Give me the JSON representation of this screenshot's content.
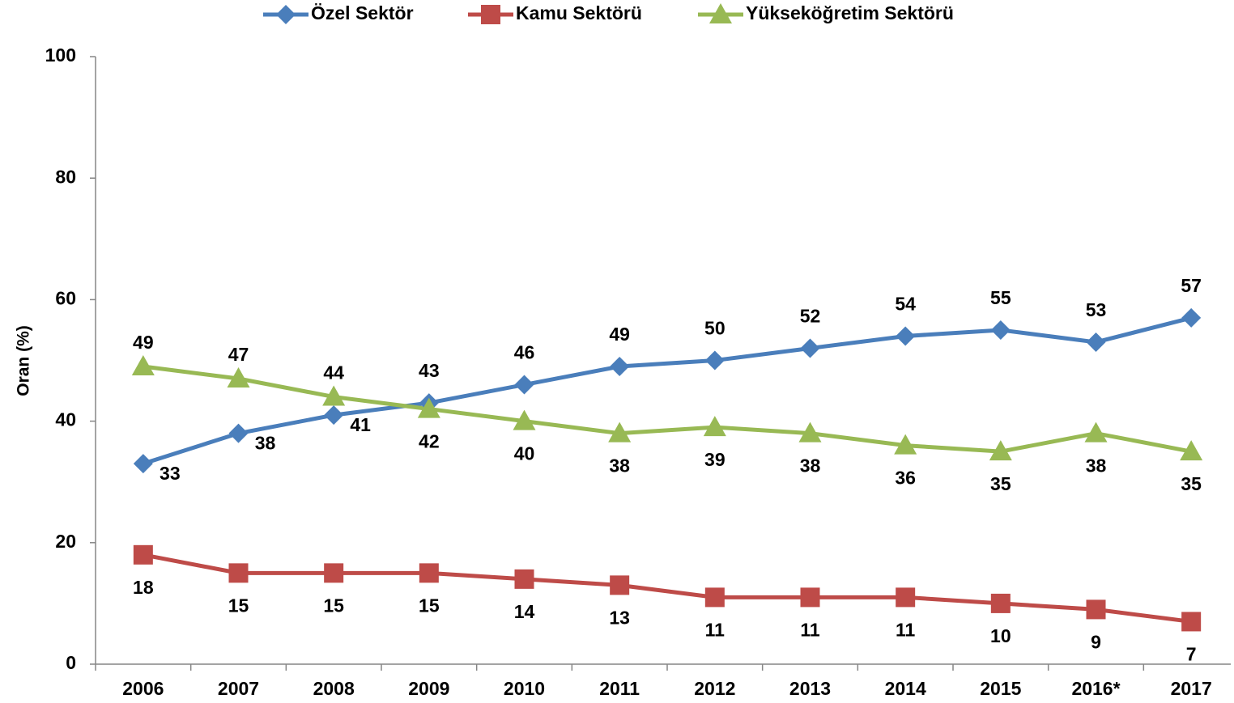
{
  "chart_data": {
    "type": "line",
    "y_label": "Oran (%)",
    "categories": [
      "2006",
      "2007",
      "2008",
      "2009",
      "2010",
      "2011",
      "2012",
      "2013",
      "2014",
      "2015",
      "2016*",
      "2017"
    ],
    "series": [
      {
        "name": "Özel Sektör",
        "color": "#4a7ebb",
        "marker": "diamond",
        "values": [
          33,
          38,
          41,
          43,
          46,
          49,
          50,
          52,
          54,
          55,
          53,
          57
        ]
      },
      {
        "name": "Kamu Sektörü",
        "color": "#be4b48",
        "marker": "square",
        "values": [
          18,
          15,
          15,
          15,
          14,
          13,
          11,
          11,
          11,
          10,
          9,
          7
        ]
      },
      {
        "name": "Yükseköğretim Sektörü",
        "color": "#98b954",
        "marker": "triangle",
        "values": [
          49,
          47,
          44,
          42,
          40,
          38,
          39,
          38,
          36,
          35,
          38,
          35
        ]
      }
    ],
    "ylim": [
      0,
      100
    ],
    "yticks": [
      0,
      20,
      40,
      60,
      80,
      100
    ],
    "legend": "top"
  }
}
